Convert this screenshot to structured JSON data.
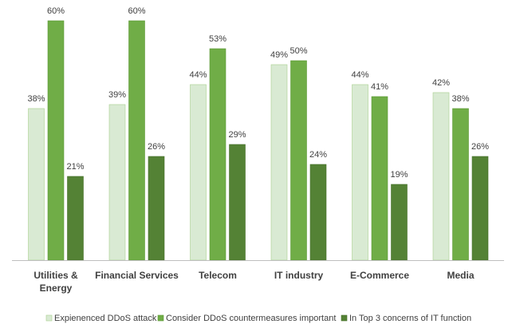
{
  "chart_data": {
    "type": "bar",
    "categories": [
      [
        "Utilities  &",
        "Energy"
      ],
      [
        "Financial Services"
      ],
      [
        "Telecom"
      ],
      [
        "IT industry"
      ],
      [
        "E-Commerce"
      ],
      [
        "Media"
      ]
    ],
    "series": [
      {
        "name": "Expienenced DDoS attack",
        "values": [
          38,
          39,
          44,
          49,
          44,
          42
        ],
        "color": "#d9ead3",
        "stroke": "#a9d08e"
      },
      {
        "name": "Consider DDoS countermeasures important",
        "values": [
          60,
          60,
          53,
          50,
          41,
          38
        ],
        "color": "#70ad47",
        "stroke": "#5e9a38"
      },
      {
        "name": "In Top 3 concerns of IT function",
        "values": [
          21,
          26,
          29,
          24,
          19,
          26
        ],
        "color": "#548235",
        "stroke": "#46702b"
      }
    ],
    "value_suffix": "%",
    "ylim": [
      0,
      65
    ],
    "grid": false,
    "legend_position": "bottom"
  }
}
